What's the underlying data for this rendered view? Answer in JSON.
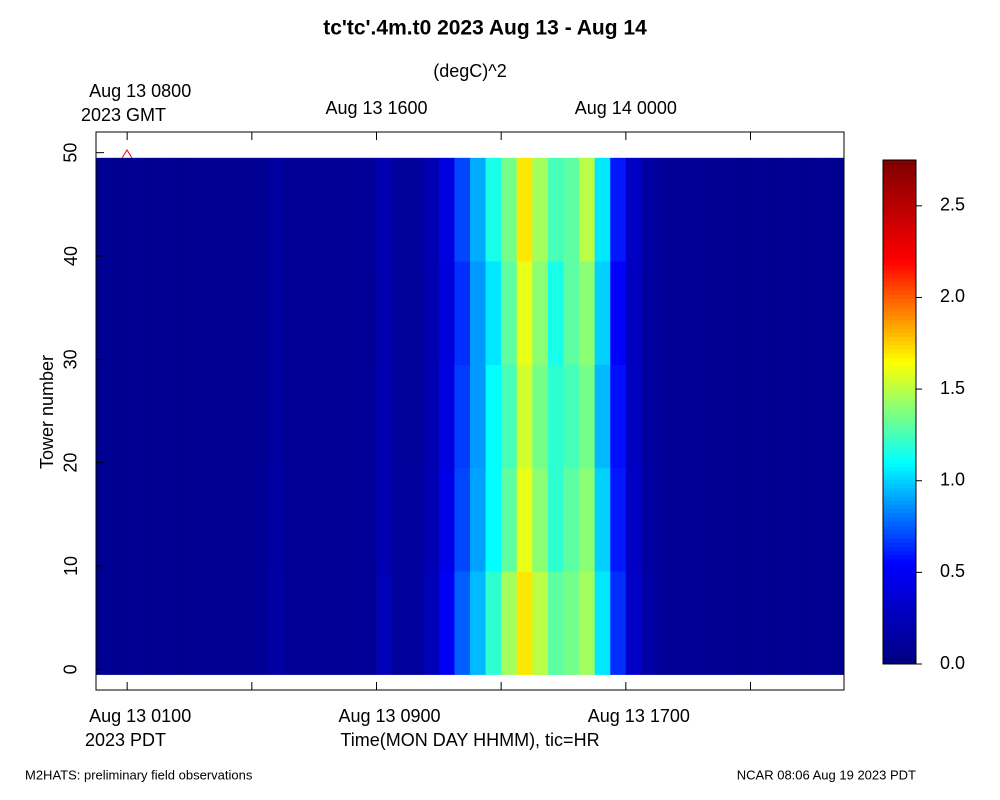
{
  "chart_data": {
    "type": "heatmap",
    "title": "tc'tc'.4m.t0 2023 Aug 13 - Aug 14",
    "colorbar_label": "(degC)^2",
    "y_label": "Tower number",
    "x_label": "Time(MON DAY HHMM), tic=HR",
    "x_zone_label": "2023 PDT",
    "top_x_zone_label": "2023 GMT",
    "footer_left": "M2HATS: preliminary field observations",
    "footer_right": "NCAR 08:06 Aug 19 2023 PDT",
    "xlim": [
      0,
      24
    ],
    "xticks": [
      {
        "value": 1,
        "label": "Aug 13 0100"
      },
      {
        "value": 5,
        "label": null
      },
      {
        "value": 9,
        "label": "Aug 13 0900"
      },
      {
        "value": 13,
        "label": null
      },
      {
        "value": 17,
        "label": "Aug 13 1700"
      },
      {
        "value": 21,
        "label": null
      }
    ],
    "top_xticks": [
      {
        "value": 1,
        "label": "Aug 13 0800"
      },
      {
        "value": 9,
        "label": "Aug 13 1600"
      },
      {
        "value": 17,
        "label": "Aug 14 0000"
      }
    ],
    "ylim": [
      -2,
      52
    ],
    "yticks": [
      0,
      10,
      20,
      30,
      40,
      50
    ],
    "zlim": [
      0,
      2.75
    ],
    "zticks": [
      {
        "value": 0,
        "label": "0.0"
      },
      {
        "value": 0.5,
        "label": "0.5"
      },
      {
        "value": 1,
        "label": "1.0"
      },
      {
        "value": 1.5,
        "label": "1.5"
      },
      {
        "value": 2,
        "label": "2.0"
      },
      {
        "value": 2.5,
        "label": "2.5"
      }
    ],
    "colormap": [
      "#00007f",
      "#0000ff",
      "#00ffff",
      "#ffff00",
      "#ff0000",
      "#7f0000"
    ],
    "x_edges": [
      0,
      0.5,
      1,
      1.5,
      2,
      2.5,
      3,
      3.5,
      4,
      4.5,
      5,
      5.5,
      6,
      6.5,
      7,
      7.5,
      8,
      8.5,
      9,
      9.5,
      10,
      10.5,
      11,
      11.5,
      12,
      12.5,
      13,
      13.5,
      14,
      14.5,
      15,
      15.5,
      16,
      16.5,
      17,
      17.5,
      18,
      18.5,
      19,
      19.5,
      20,
      20.5,
      21,
      21.5,
      22,
      22.5,
      23,
      23.5,
      24
    ],
    "y_edges": [
      -0.5,
      9.5,
      19.5,
      29.5,
      39.5,
      49.5
    ],
    "z": [
      [
        0.08,
        0.07,
        0.08,
        0.07,
        0.08,
        0.07,
        0.08,
        0.08,
        0.09,
        0.08,
        0.09,
        0.16,
        0.09,
        0.1,
        0.1,
        0.1,
        0.11,
        0.1,
        0.24,
        0.12,
        0.13,
        0.24,
        0.5,
        0.75,
        0.95,
        1.2,
        1.45,
        1.7,
        1.5,
        1.3,
        1.35,
        1.45,
        1.05,
        0.65,
        0.32,
        0.16,
        0.1,
        0.09,
        0.09,
        0.08,
        0.08,
        0.07,
        0.08,
        0.07,
        0.08,
        0.07,
        0.08,
        0.07
      ],
      [
        0.08,
        0.07,
        0.08,
        0.07,
        0.08,
        0.07,
        0.08,
        0.08,
        0.09,
        0.08,
        0.09,
        0.15,
        0.09,
        0.1,
        0.1,
        0.1,
        0.11,
        0.1,
        0.22,
        0.12,
        0.13,
        0.22,
        0.45,
        0.7,
        0.9,
        1.1,
        1.3,
        1.6,
        1.4,
        1.2,
        1.3,
        1.4,
        1.0,
        0.6,
        0.3,
        0.15,
        0.1,
        0.09,
        0.09,
        0.08,
        0.08,
        0.07,
        0.08,
        0.07,
        0.08,
        0.07,
        0.08,
        0.07
      ],
      [
        0.08,
        0.07,
        0.08,
        0.07,
        0.08,
        0.07,
        0.08,
        0.08,
        0.09,
        0.08,
        0.09,
        0.14,
        0.09,
        0.1,
        0.1,
        0.1,
        0.11,
        0.1,
        0.21,
        0.12,
        0.12,
        0.2,
        0.42,
        0.68,
        0.88,
        1.1,
        1.25,
        1.55,
        1.35,
        1.2,
        1.25,
        1.35,
        0.95,
        0.58,
        0.28,
        0.14,
        0.1,
        0.09,
        0.09,
        0.08,
        0.08,
        0.07,
        0.08,
        0.07,
        0.08,
        0.07,
        0.08,
        0.07
      ],
      [
        0.08,
        0.07,
        0.08,
        0.07,
        0.08,
        0.07,
        0.08,
        0.08,
        0.09,
        0.08,
        0.09,
        0.14,
        0.09,
        0.1,
        0.1,
        0.1,
        0.11,
        0.1,
        0.2,
        0.12,
        0.12,
        0.2,
        0.4,
        0.65,
        0.88,
        1.05,
        1.3,
        1.6,
        1.4,
        1.15,
        1.3,
        1.4,
        1.0,
        0.55,
        0.28,
        0.14,
        0.1,
        0.09,
        0.09,
        0.08,
        0.08,
        0.07,
        0.08,
        0.07,
        0.08,
        0.07,
        0.08,
        0.07
      ],
      [
        0.08,
        0.07,
        0.08,
        0.07,
        0.08,
        0.07,
        0.08,
        0.08,
        0.09,
        0.08,
        0.09,
        0.14,
        0.09,
        0.1,
        0.1,
        0.1,
        0.11,
        0.1,
        0.22,
        0.12,
        0.12,
        0.21,
        0.42,
        0.7,
        0.92,
        1.15,
        1.35,
        1.7,
        1.45,
        1.25,
        1.3,
        1.5,
        1.05,
        0.6,
        0.3,
        0.14,
        0.1,
        0.09,
        0.09,
        0.08,
        0.08,
        0.07,
        0.08,
        0.07,
        0.08,
        0.07,
        0.08,
        0.07
      ]
    ]
  }
}
